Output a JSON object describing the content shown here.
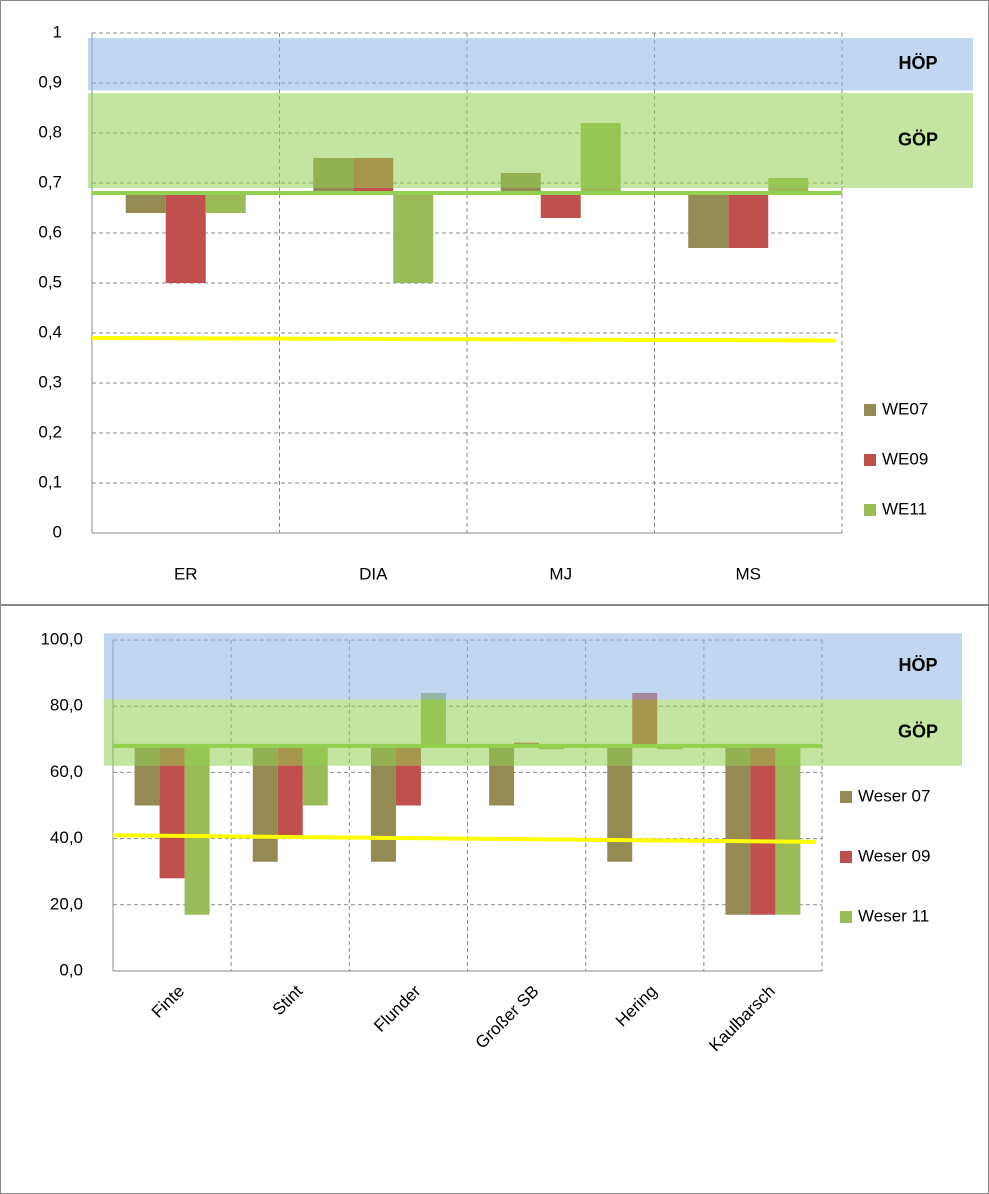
{
  "chart_data": [
    {
      "type": "bar",
      "categories": [
        "ER",
        "DIA",
        "MJ",
        "MS"
      ],
      "series": [
        {
          "name": "WE07",
          "color": "#948a54",
          "values": [
            0.64,
            0.75,
            0.72,
            0.57
          ]
        },
        {
          "name": "WE09",
          "color": "#c0504d",
          "values": [
            0.5,
            0.75,
            0.63,
            0.57
          ]
        },
        {
          "name": "WE11",
          "color": "#9bbb59",
          "values": [
            0.64,
            0.5,
            0.82,
            0.71
          ]
        }
      ],
      "ylim": [
        0,
        1
      ],
      "yticks": [
        0,
        {
          "value": 0.1,
          "label": "0,1"
        },
        {
          "value": 0.2,
          "label": "0,2"
        },
        {
          "value": 0.3,
          "label": "0,3"
        },
        {
          "value": 0.4,
          "label": "0,4"
        },
        {
          "value": 0.5,
          "label": "0,5"
        },
        {
          "value": 0.6,
          "label": "0,6"
        },
        {
          "value": 0.7,
          "label": "0,7"
        },
        {
          "value": 0.8,
          "label": "0,8"
        },
        {
          "value": 0.9,
          "label": "0,9"
        },
        1
      ],
      "grid": true,
      "bar_base": 0.68,
      "bands": [
        {
          "label": "HÖP",
          "range": [
            0.885,
            0.99
          ],
          "color": "#8eb4e3"
        },
        {
          "label": "GÖP",
          "range": [
            0.69,
            0.88
          ],
          "color": "#92d050"
        }
      ],
      "lines": [
        {
          "values": [
            0.39,
            0.385
          ],
          "color": "#ffff00"
        }
      ],
      "base_line_color": "#92d050",
      "legend": "right"
    },
    {
      "type": "bar",
      "categories": [
        "Finte",
        "Stint",
        "Flunder",
        "Großer SB",
        "Hering",
        "Kaulbarsch"
      ],
      "series": [
        {
          "name": "Weser 07",
          "color": "#948a54",
          "values": [
            50,
            33,
            33,
            50,
            33,
            17
          ]
        },
        {
          "name": "Weser 09",
          "color": "#c0504d",
          "values": [
            28,
            40,
            50,
            69,
            84,
            17
          ]
        },
        {
          "name": "Weser 11",
          "color": "#9bbb59",
          "values": [
            17,
            50,
            84,
            67,
            67,
            17
          ]
        }
      ],
      "ylim": [
        0,
        100
      ],
      "yticks": [
        {
          "value": 0,
          "label": "0,0"
        },
        {
          "value": 20,
          "label": "20,0"
        },
        {
          "value": 40,
          "label": "40,0"
        },
        {
          "value": 60,
          "label": "60,0"
        },
        {
          "value": 80,
          "label": "80,0"
        },
        {
          "value": 100,
          "label": "100,0"
        }
      ],
      "grid": true,
      "bar_base": 68,
      "bands": [
        {
          "label": "HÖP",
          "range": [
            82,
            102
          ],
          "color": "#8eb4e3"
        },
        {
          "label": "GÖP",
          "range": [
            62,
            82
          ],
          "color": "#92d050"
        }
      ],
      "lines": [
        {
          "values": [
            41,
            39
          ],
          "color": "#ffff00"
        }
      ],
      "base_line_color": "#92d050",
      "legend": "right"
    }
  ]
}
